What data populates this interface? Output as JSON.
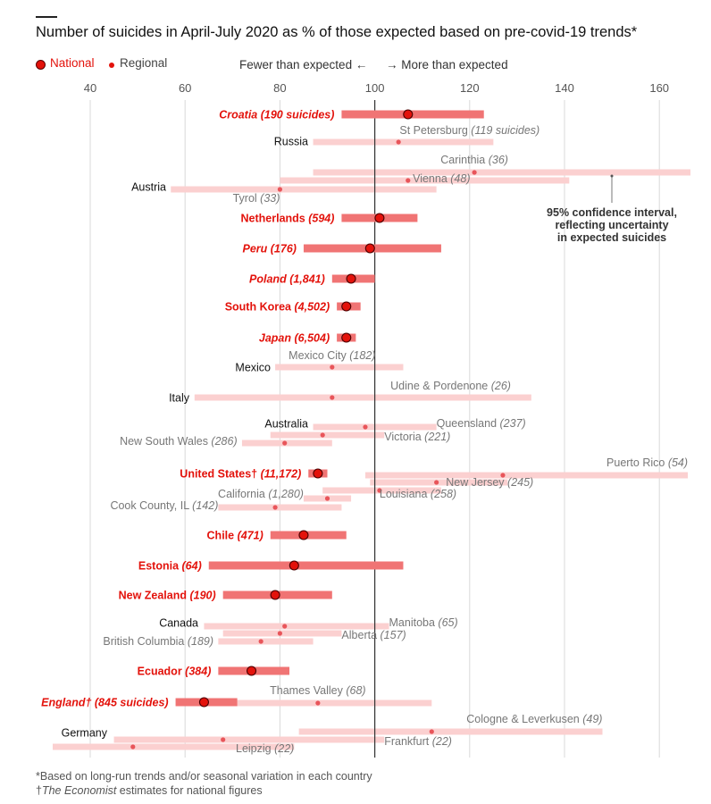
{
  "title": "Number of suicides in April-July 2020 as % of those expected based on pre-covid-19 trends*",
  "legend": {
    "national": "National",
    "regional": "Regional",
    "fewer": "Fewer than expected ←",
    "more": "→ More than expected"
  },
  "annotation": [
    "95% confidence interval,",
    "reflecting uncertainty",
    "in expected suicides"
  ],
  "footnotes": {
    "line1": "*Based on long-run trends and/or seasonal variation in each country",
    "line2_prefix": "†",
    "line2_italic": "The Economist",
    "line2_rest": " estimates for national figures"
  },
  "colors": {
    "national": "#e3120b",
    "national_ci": "#f07474",
    "regional_ci": "#fbd0d0",
    "regional_dot": "#e8555a",
    "grid": "#d8d8d8",
    "reference_line": "#333333"
  },
  "chart_data": {
    "type": "dot-interval",
    "xlim": [
      30,
      168
    ],
    "xticks": [
      40,
      60,
      80,
      100,
      120,
      140,
      160
    ],
    "reference": 100,
    "grid": true,
    "groups": [
      {
        "country": "Croatia",
        "n": "190 suicides",
        "national": {
          "value": 107,
          "low": 93,
          "high": 123
        },
        "regions": []
      },
      {
        "country": "Russia",
        "national": null,
        "regions": [
          {
            "name": "St Petersburg",
            "n": "119 suicides",
            "value": 105,
            "low": 87,
            "high": 125
          }
        ]
      },
      {
        "country": "Austria",
        "national": null,
        "regions": [
          {
            "name": "Carinthia",
            "n": "36",
            "value": 121,
            "low": 87,
            "high": 167
          },
          {
            "name": "Vienna",
            "n": "48",
            "value": 107,
            "low": 80,
            "high": 141
          },
          {
            "name": "Tyrol",
            "n": "33",
            "value": 80,
            "low": 57,
            "high": 113
          }
        ]
      },
      {
        "country": "Netherlands",
        "n": "594",
        "national": {
          "value": 101,
          "low": 93,
          "high": 109
        },
        "regions": []
      },
      {
        "country": "Peru",
        "n": "176",
        "national": {
          "value": 99,
          "low": 85,
          "high": 114
        },
        "regions": []
      },
      {
        "country": "Poland",
        "n": "1,841",
        "national": {
          "value": 95,
          "low": 91,
          "high": 100
        },
        "regions": []
      },
      {
        "country": "South Korea",
        "n": "4,502",
        "national": {
          "value": 94,
          "low": 92,
          "high": 97
        },
        "regions": []
      },
      {
        "country": "Japan",
        "n": "6,504",
        "national": {
          "value": 94,
          "low": 92,
          "high": 96
        },
        "regions": []
      },
      {
        "country": "Mexico",
        "national": null,
        "regions": [
          {
            "name": "Mexico City",
            "n": "182",
            "value": 91,
            "low": 79,
            "high": 106
          }
        ]
      },
      {
        "country": "Italy",
        "national": null,
        "regions": [
          {
            "name": "Udine & Pordenone",
            "n": "26",
            "value": 91,
            "low": 62,
            "high": 133
          }
        ]
      },
      {
        "country": "Australia",
        "national": null,
        "regions": [
          {
            "name": "Queensland",
            "n": "237",
            "value": 98,
            "low": 87,
            "high": 113
          },
          {
            "name": "Victoria",
            "n": "221",
            "value": 89,
            "low": 78,
            "high": 102
          },
          {
            "name": "New South Wales",
            "n": "286",
            "value": 81,
            "low": 72,
            "high": 91
          }
        ]
      },
      {
        "country": "United States",
        "n": "11,172",
        "national": {
          "value": 88,
          "low": 86,
          "high": 90
        },
        "regions": [
          {
            "name": "Puerto Rico",
            "n": "54",
            "value": 127,
            "low": 98,
            "high": 166
          },
          {
            "name": "New Jersey",
            "n": "245",
            "value": 113,
            "low": 99,
            "high": 128
          },
          {
            "name": "Louisiana",
            "n": "258",
            "value": 101,
            "low": 89,
            "high": 114
          },
          {
            "name": "California",
            "n": "1,280",
            "value": 90,
            "low": 85,
            "high": 95
          },
          {
            "name": "Cook County, IL",
            "n": "142",
            "value": 79,
            "low": 67,
            "high": 93
          }
        ]
      },
      {
        "country": "Chile",
        "n": "471",
        "national": {
          "value": 85,
          "low": 78,
          "high": 94
        },
        "regions": []
      },
      {
        "country": "Estonia",
        "n": "64",
        "national": {
          "value": 83,
          "low": 65,
          "high": 106
        },
        "regions": []
      },
      {
        "country": "New Zealand",
        "n": "190",
        "national": {
          "value": 79,
          "low": 68,
          "high": 91
        },
        "regions": []
      },
      {
        "country": "Canada",
        "national": null,
        "regions": [
          {
            "name": "Manitoba",
            "n": "65",
            "value": 81,
            "low": 64,
            "high": 103
          },
          {
            "name": "Alberta",
            "n": "157",
            "value": 80,
            "low": 68,
            "high": 93
          },
          {
            "name": "British Columbia",
            "n": "189",
            "value": 76,
            "low": 67,
            "high": 87
          }
        ]
      },
      {
        "country": "Ecuador",
        "n": "384",
        "national": {
          "value": 74,
          "low": 67,
          "high": 82
        },
        "regions": []
      },
      {
        "country": "England",
        "n": "845 suicides",
        "national": {
          "value": 64,
          "low": 58,
          "high": 71
        },
        "regions": [
          {
            "name": "Thames Valley",
            "n": "68",
            "value": 88,
            "low": 67,
            "high": 112
          }
        ]
      },
      {
        "country": "Germany",
        "national": null,
        "regions": [
          {
            "name": "Cologne & Leverkusen",
            "n": "49",
            "value": 112,
            "low": 84,
            "high": 148
          },
          {
            "name": "Frankfurt",
            "n": "22",
            "value": 68,
            "low": 45,
            "high": 102
          },
          {
            "name": "Leipzig",
            "n": "22",
            "value": 49,
            "low": 32,
            "high": 83
          }
        ]
      }
    ]
  }
}
